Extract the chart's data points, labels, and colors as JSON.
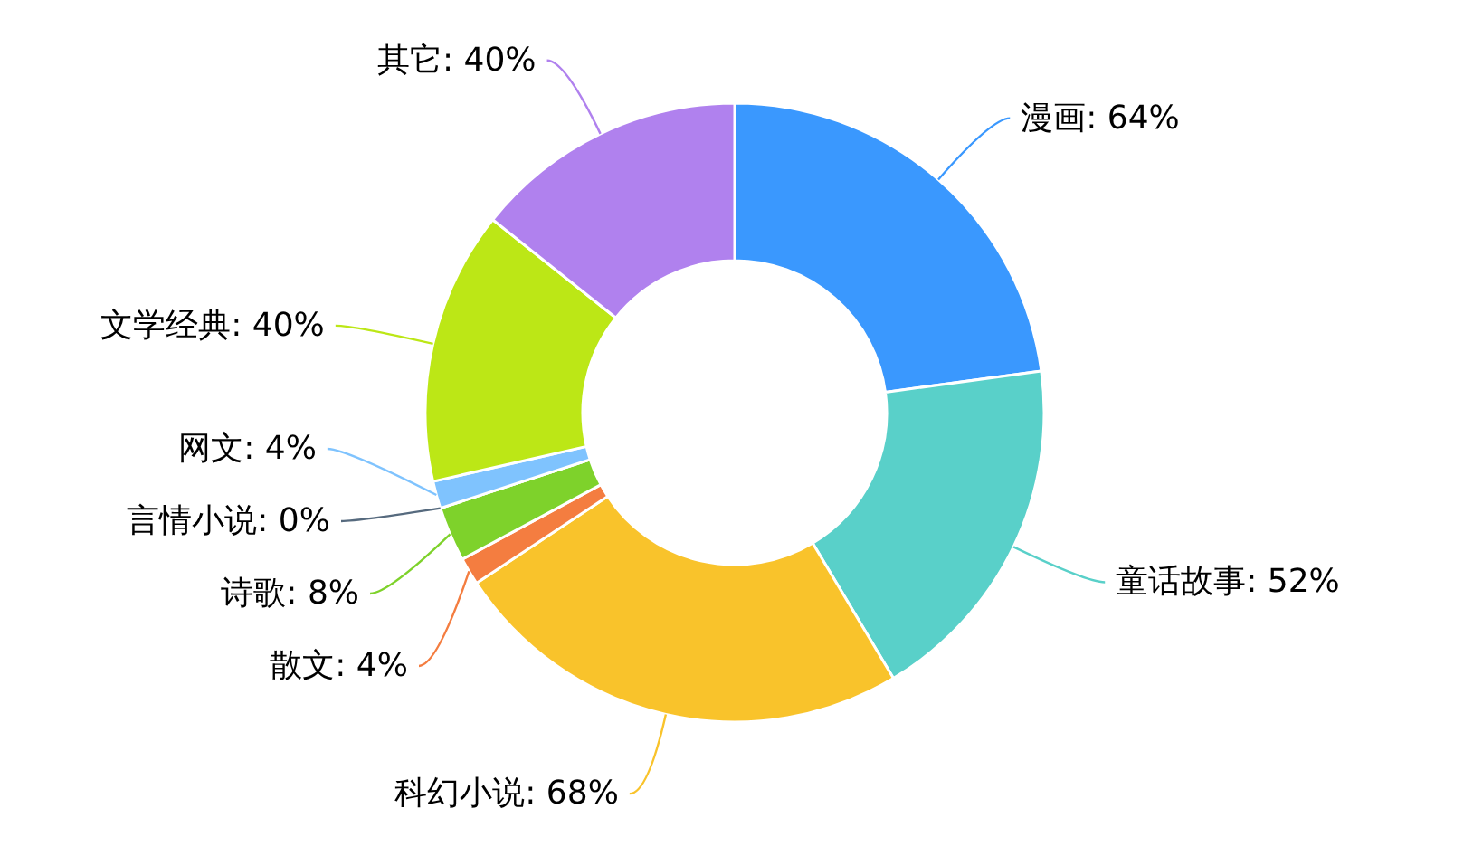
{
  "chart_data": {
    "type": "donut",
    "categories": [
      "漫画",
      "童话故事",
      "科幻小说",
      "散文",
      "诗歌",
      "言情小说",
      "网文",
      "文学经典",
      "其它"
    ],
    "values": [
      64,
      52,
      68,
      4,
      8,
      0,
      4,
      40,
      40
    ],
    "value_labels": [
      "64%",
      "52%",
      "68%",
      "4%",
      "8%",
      "0%",
      "4%",
      "40%",
      "40%"
    ],
    "colors": [
      "#3a98fe",
      "#59d0c9",
      "#f9c32b",
      "#f47d40",
      "#7ed22b",
      "#566a7e",
      "#7fc3fe",
      "#bce716",
      "#b081ee"
    ]
  }
}
